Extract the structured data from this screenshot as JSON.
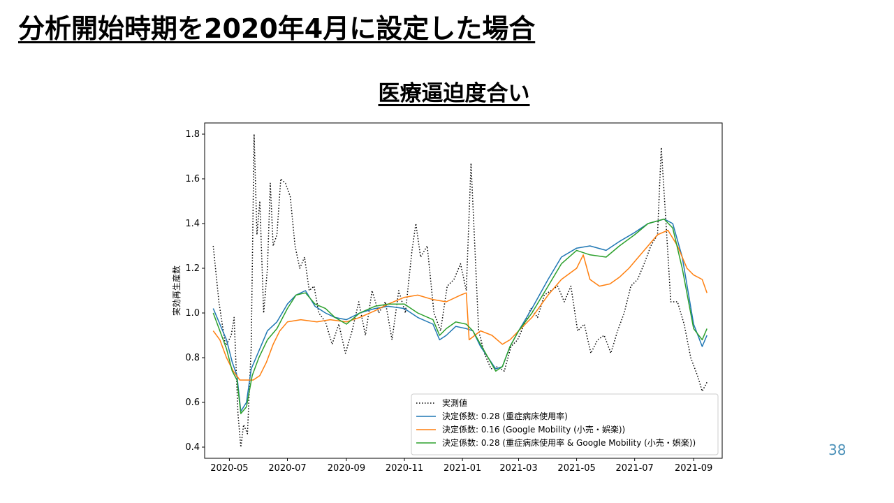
{
  "slide": {
    "title": "分析開始時期を2020年4月に設定した場合",
    "chart_title": "医療逼迫度合い",
    "page_number": "38"
  },
  "colors": {
    "observed": "#000000",
    "model_1": "#1f77b4",
    "model_2": "#ff7f0e",
    "model_3": "#2ca02c",
    "page_number": "#4a90b8"
  },
  "chart_data": {
    "type": "line",
    "title": "医療逼迫度合い",
    "xlabel": "",
    "ylabel": "実効再生産数",
    "xlim": [
      "2020-04-05",
      "2021-10-01"
    ],
    "ylim": [
      0.35,
      1.85
    ],
    "x_ticks": [
      "2020-05",
      "2020-07",
      "2020-09",
      "2020-11",
      "2021-01",
      "2021-03",
      "2021-05",
      "2021-07",
      "2021-09"
    ],
    "x_tick_dates": [
      "2020-05-01",
      "2020-07-01",
      "2020-09-01",
      "2020-11-01",
      "2021-01-01",
      "2021-03-01",
      "2021-05-01",
      "2021-07-01",
      "2021-09-01"
    ],
    "y_ticks": [
      "0.4",
      "0.6",
      "0.8",
      "1.0",
      "1.2",
      "1.4",
      "1.6",
      "1.8"
    ],
    "y_tick_values": [
      0.4,
      0.6,
      0.8,
      1.0,
      1.2,
      1.4,
      1.6,
      1.8
    ],
    "grid": false,
    "legend_position": "lower-right",
    "series": [
      {
        "name": "実測値",
        "style": "dotted",
        "color": "#000000",
        "points": [
          [
            "2020-04-14",
            1.3
          ],
          [
            "2020-04-20",
            1.05
          ],
          [
            "2020-04-27",
            0.85
          ],
          [
            "2020-05-03",
            0.9
          ],
          [
            "2020-05-06",
            0.98
          ],
          [
            "2020-05-10",
            0.55
          ],
          [
            "2020-05-13",
            0.4
          ],
          [
            "2020-05-16",
            0.5
          ],
          [
            "2020-05-20",
            0.46
          ],
          [
            "2020-05-24",
            0.85
          ],
          [
            "2020-05-27",
            1.8
          ],
          [
            "2020-05-30",
            1.35
          ],
          [
            "2020-06-02",
            1.5
          ],
          [
            "2020-06-06",
            1.0
          ],
          [
            "2020-06-10",
            1.2
          ],
          [
            "2020-06-13",
            1.58
          ],
          [
            "2020-06-16",
            1.3
          ],
          [
            "2020-06-20",
            1.35
          ],
          [
            "2020-06-24",
            1.6
          ],
          [
            "2020-06-29",
            1.58
          ],
          [
            "2020-07-04",
            1.52
          ],
          [
            "2020-07-09",
            1.3
          ],
          [
            "2020-07-14",
            1.2
          ],
          [
            "2020-07-19",
            1.25
          ],
          [
            "2020-07-24",
            1.1
          ],
          [
            "2020-07-29",
            1.12
          ],
          [
            "2020-08-03",
            1.0
          ],
          [
            "2020-08-10",
            0.96
          ],
          [
            "2020-08-17",
            0.86
          ],
          [
            "2020-08-24",
            0.95
          ],
          [
            "2020-08-31",
            0.82
          ],
          [
            "2020-09-07",
            0.92
          ],
          [
            "2020-09-14",
            1.05
          ],
          [
            "2020-09-21",
            0.9
          ],
          [
            "2020-09-28",
            1.1
          ],
          [
            "2020-10-05",
            1.0
          ],
          [
            "2020-10-12",
            1.05
          ],
          [
            "2020-10-19",
            0.88
          ],
          [
            "2020-10-26",
            1.1
          ],
          [
            "2020-11-02",
            1.0
          ],
          [
            "2020-11-09",
            1.28
          ],
          [
            "2020-11-13",
            1.4
          ],
          [
            "2020-11-18",
            1.25
          ],
          [
            "2020-11-25",
            1.3
          ],
          [
            "2020-12-02",
            1.0
          ],
          [
            "2020-12-09",
            0.92
          ],
          [
            "2020-12-16",
            1.12
          ],
          [
            "2020-12-23",
            1.15
          ],
          [
            "2020-12-30",
            1.22
          ],
          [
            "2021-01-05",
            1.1
          ],
          [
            "2021-01-10",
            1.67
          ],
          [
            "2021-01-14",
            1.3
          ],
          [
            "2021-01-18",
            0.92
          ],
          [
            "2021-01-24",
            0.82
          ],
          [
            "2021-01-31",
            0.75
          ],
          [
            "2021-02-07",
            0.76
          ],
          [
            "2021-02-14",
            0.74
          ],
          [
            "2021-02-21",
            0.85
          ],
          [
            "2021-02-28",
            0.88
          ],
          [
            "2021-03-07",
            0.95
          ],
          [
            "2021-03-14",
            1.02
          ],
          [
            "2021-03-21",
            0.98
          ],
          [
            "2021-03-28",
            1.08
          ],
          [
            "2021-04-04",
            1.1
          ],
          [
            "2021-04-11",
            1.12
          ],
          [
            "2021-04-18",
            1.05
          ],
          [
            "2021-04-25",
            1.12
          ],
          [
            "2021-05-02",
            0.92
          ],
          [
            "2021-05-09",
            0.95
          ],
          [
            "2021-05-16",
            0.82
          ],
          [
            "2021-05-23",
            0.88
          ],
          [
            "2021-05-30",
            0.9
          ],
          [
            "2021-06-06",
            0.82
          ],
          [
            "2021-06-13",
            0.92
          ],
          [
            "2021-06-20",
            1.0
          ],
          [
            "2021-06-27",
            1.12
          ],
          [
            "2021-07-04",
            1.15
          ],
          [
            "2021-07-11",
            1.22
          ],
          [
            "2021-07-18",
            1.3
          ],
          [
            "2021-07-25",
            1.35
          ],
          [
            "2021-07-29",
            1.74
          ],
          [
            "2021-08-03",
            1.4
          ],
          [
            "2021-08-08",
            1.05
          ],
          [
            "2021-08-15",
            1.05
          ],
          [
            "2021-08-22",
            0.95
          ],
          [
            "2021-08-29",
            0.8
          ],
          [
            "2021-09-05",
            0.72
          ],
          [
            "2021-09-10",
            0.65
          ],
          [
            "2021-09-15",
            0.69
          ]
        ]
      },
      {
        "name": "決定係数: 0.28 (重症病床使用率)",
        "style": "solid",
        "color": "#1f77b4",
        "points": [
          [
            "2020-04-14",
            1.02
          ],
          [
            "2020-04-21",
            0.95
          ],
          [
            "2020-04-28",
            0.88
          ],
          [
            "2020-05-04",
            0.78
          ],
          [
            "2020-05-09",
            0.72
          ],
          [
            "2020-05-13",
            0.56
          ],
          [
            "2020-05-19",
            0.6
          ],
          [
            "2020-05-24",
            0.75
          ],
          [
            "2020-05-31",
            0.82
          ],
          [
            "2020-06-10",
            0.92
          ],
          [
            "2020-06-20",
            0.96
          ],
          [
            "2020-07-01",
            1.04
          ],
          [
            "2020-07-10",
            1.08
          ],
          [
            "2020-07-20",
            1.1
          ],
          [
            "2020-07-30",
            1.03
          ],
          [
            "2020-08-10",
            1.0
          ],
          [
            "2020-08-20",
            0.98
          ],
          [
            "2020-09-01",
            0.97
          ],
          [
            "2020-09-15",
            1.0
          ],
          [
            "2020-10-01",
            1.02
          ],
          [
            "2020-10-15",
            1.03
          ],
          [
            "2020-11-01",
            1.02
          ],
          [
            "2020-11-15",
            0.98
          ],
          [
            "2020-12-01",
            0.95
          ],
          [
            "2020-12-08",
            0.88
          ],
          [
            "2020-12-15",
            0.9
          ],
          [
            "2020-12-25",
            0.94
          ],
          [
            "2021-01-05",
            0.93
          ],
          [
            "2021-01-12",
            0.92
          ],
          [
            "2021-01-20",
            0.85
          ],
          [
            "2021-01-28",
            0.8
          ],
          [
            "2021-02-05",
            0.75
          ],
          [
            "2021-02-12",
            0.76
          ],
          [
            "2021-02-20",
            0.85
          ],
          [
            "2021-03-01",
            0.92
          ],
          [
            "2021-03-15",
            1.02
          ],
          [
            "2021-04-01",
            1.15
          ],
          [
            "2021-04-15",
            1.25
          ],
          [
            "2021-05-01",
            1.29
          ],
          [
            "2021-05-15",
            1.3
          ],
          [
            "2021-06-01",
            1.28
          ],
          [
            "2021-06-15",
            1.32
          ],
          [
            "2021-07-01",
            1.36
          ],
          [
            "2021-07-15",
            1.4
          ],
          [
            "2021-08-01",
            1.42
          ],
          [
            "2021-08-10",
            1.4
          ],
          [
            "2021-08-20",
            1.25
          ],
          [
            "2021-09-01",
            0.95
          ],
          [
            "2021-09-10",
            0.85
          ],
          [
            "2021-09-15",
            0.9
          ]
        ]
      },
      {
        "name": "決定係数: 0.16 (Google Mobility (小売・娯楽))",
        "style": "solid",
        "color": "#ff7f0e",
        "points": [
          [
            "2020-04-14",
            0.92
          ],
          [
            "2020-04-21",
            0.88
          ],
          [
            "2020-04-28",
            0.8
          ],
          [
            "2020-05-05",
            0.74
          ],
          [
            "2020-05-12",
            0.7
          ],
          [
            "2020-05-19",
            0.7
          ],
          [
            "2020-05-26",
            0.7
          ],
          [
            "2020-06-02",
            0.72
          ],
          [
            "2020-06-09",
            0.78
          ],
          [
            "2020-06-16",
            0.86
          ],
          [
            "2020-06-23",
            0.92
          ],
          [
            "2020-07-01",
            0.96
          ],
          [
            "2020-07-15",
            0.97
          ],
          [
            "2020-08-01",
            0.96
          ],
          [
            "2020-08-15",
            0.97
          ],
          [
            "2020-09-01",
            0.96
          ],
          [
            "2020-09-15",
            0.98
          ],
          [
            "2020-10-01",
            1.01
          ],
          [
            "2020-10-15",
            1.04
          ],
          [
            "2020-11-01",
            1.07
          ],
          [
            "2020-11-15",
            1.08
          ],
          [
            "2020-12-01",
            1.06
          ],
          [
            "2020-12-15",
            1.05
          ],
          [
            "2020-12-30",
            1.08
          ],
          [
            "2021-01-05",
            1.09
          ],
          [
            "2021-01-08",
            0.88
          ],
          [
            "2021-01-20",
            0.92
          ],
          [
            "2021-02-01",
            0.9
          ],
          [
            "2021-02-12",
            0.86
          ],
          [
            "2021-02-20",
            0.88
          ],
          [
            "2021-03-01",
            0.92
          ],
          [
            "2021-03-15",
            0.98
          ],
          [
            "2021-04-01",
            1.08
          ],
          [
            "2021-04-15",
            1.15
          ],
          [
            "2021-05-01",
            1.2
          ],
          [
            "2021-05-08",
            1.26
          ],
          [
            "2021-05-15",
            1.15
          ],
          [
            "2021-05-25",
            1.12
          ],
          [
            "2021-06-05",
            1.13
          ],
          [
            "2021-06-15",
            1.16
          ],
          [
            "2021-06-25",
            1.2
          ],
          [
            "2021-07-05",
            1.25
          ],
          [
            "2021-07-15",
            1.3
          ],
          [
            "2021-07-25",
            1.35
          ],
          [
            "2021-08-05",
            1.37
          ],
          [
            "2021-08-15",
            1.3
          ],
          [
            "2021-08-25",
            1.2
          ],
          [
            "2021-09-01",
            1.17
          ],
          [
            "2021-09-10",
            1.15
          ],
          [
            "2021-09-15",
            1.09
          ]
        ]
      },
      {
        "name": "決定係数: 0.28 (重症病床使用率 & Google Mobility (小売・娯楽))",
        "style": "solid",
        "color": "#2ca02c",
        "points": [
          [
            "2020-04-14",
            1.0
          ],
          [
            "2020-04-21",
            0.92
          ],
          [
            "2020-04-28",
            0.84
          ],
          [
            "2020-05-04",
            0.74
          ],
          [
            "2020-05-09",
            0.7
          ],
          [
            "2020-05-13",
            0.55
          ],
          [
            "2020-05-19",
            0.58
          ],
          [
            "2020-05-25",
            0.72
          ],
          [
            "2020-06-01",
            0.8
          ],
          [
            "2020-06-10",
            0.88
          ],
          [
            "2020-06-20",
            0.93
          ],
          [
            "2020-07-01",
            1.02
          ],
          [
            "2020-07-10",
            1.08
          ],
          [
            "2020-07-20",
            1.09
          ],
          [
            "2020-07-30",
            1.04
          ],
          [
            "2020-08-10",
            1.02
          ],
          [
            "2020-08-20",
            0.98
          ],
          [
            "2020-09-01",
            0.95
          ],
          [
            "2020-09-15",
            1.0
          ],
          [
            "2020-10-01",
            1.03
          ],
          [
            "2020-10-15",
            1.04
          ],
          [
            "2020-11-01",
            1.04
          ],
          [
            "2020-11-15",
            1.0
          ],
          [
            "2020-12-01",
            0.97
          ],
          [
            "2020-12-08",
            0.9
          ],
          [
            "2020-12-15",
            0.93
          ],
          [
            "2020-12-25",
            0.96
          ],
          [
            "2021-01-05",
            0.95
          ],
          [
            "2021-01-12",
            0.92
          ],
          [
            "2021-01-20",
            0.86
          ],
          [
            "2021-01-28",
            0.8
          ],
          [
            "2021-02-05",
            0.74
          ],
          [
            "2021-02-12",
            0.76
          ],
          [
            "2021-02-20",
            0.85
          ],
          [
            "2021-03-01",
            0.92
          ],
          [
            "2021-03-15",
            1.0
          ],
          [
            "2021-04-01",
            1.12
          ],
          [
            "2021-04-15",
            1.22
          ],
          [
            "2021-05-01",
            1.28
          ],
          [
            "2021-05-15",
            1.26
          ],
          [
            "2021-06-01",
            1.25
          ],
          [
            "2021-06-15",
            1.3
          ],
          [
            "2021-07-01",
            1.35
          ],
          [
            "2021-07-15",
            1.4
          ],
          [
            "2021-08-01",
            1.42
          ],
          [
            "2021-08-10",
            1.38
          ],
          [
            "2021-08-20",
            1.2
          ],
          [
            "2021-09-01",
            0.93
          ],
          [
            "2021-09-10",
            0.88
          ],
          [
            "2021-09-15",
            0.93
          ]
        ]
      }
    ]
  }
}
